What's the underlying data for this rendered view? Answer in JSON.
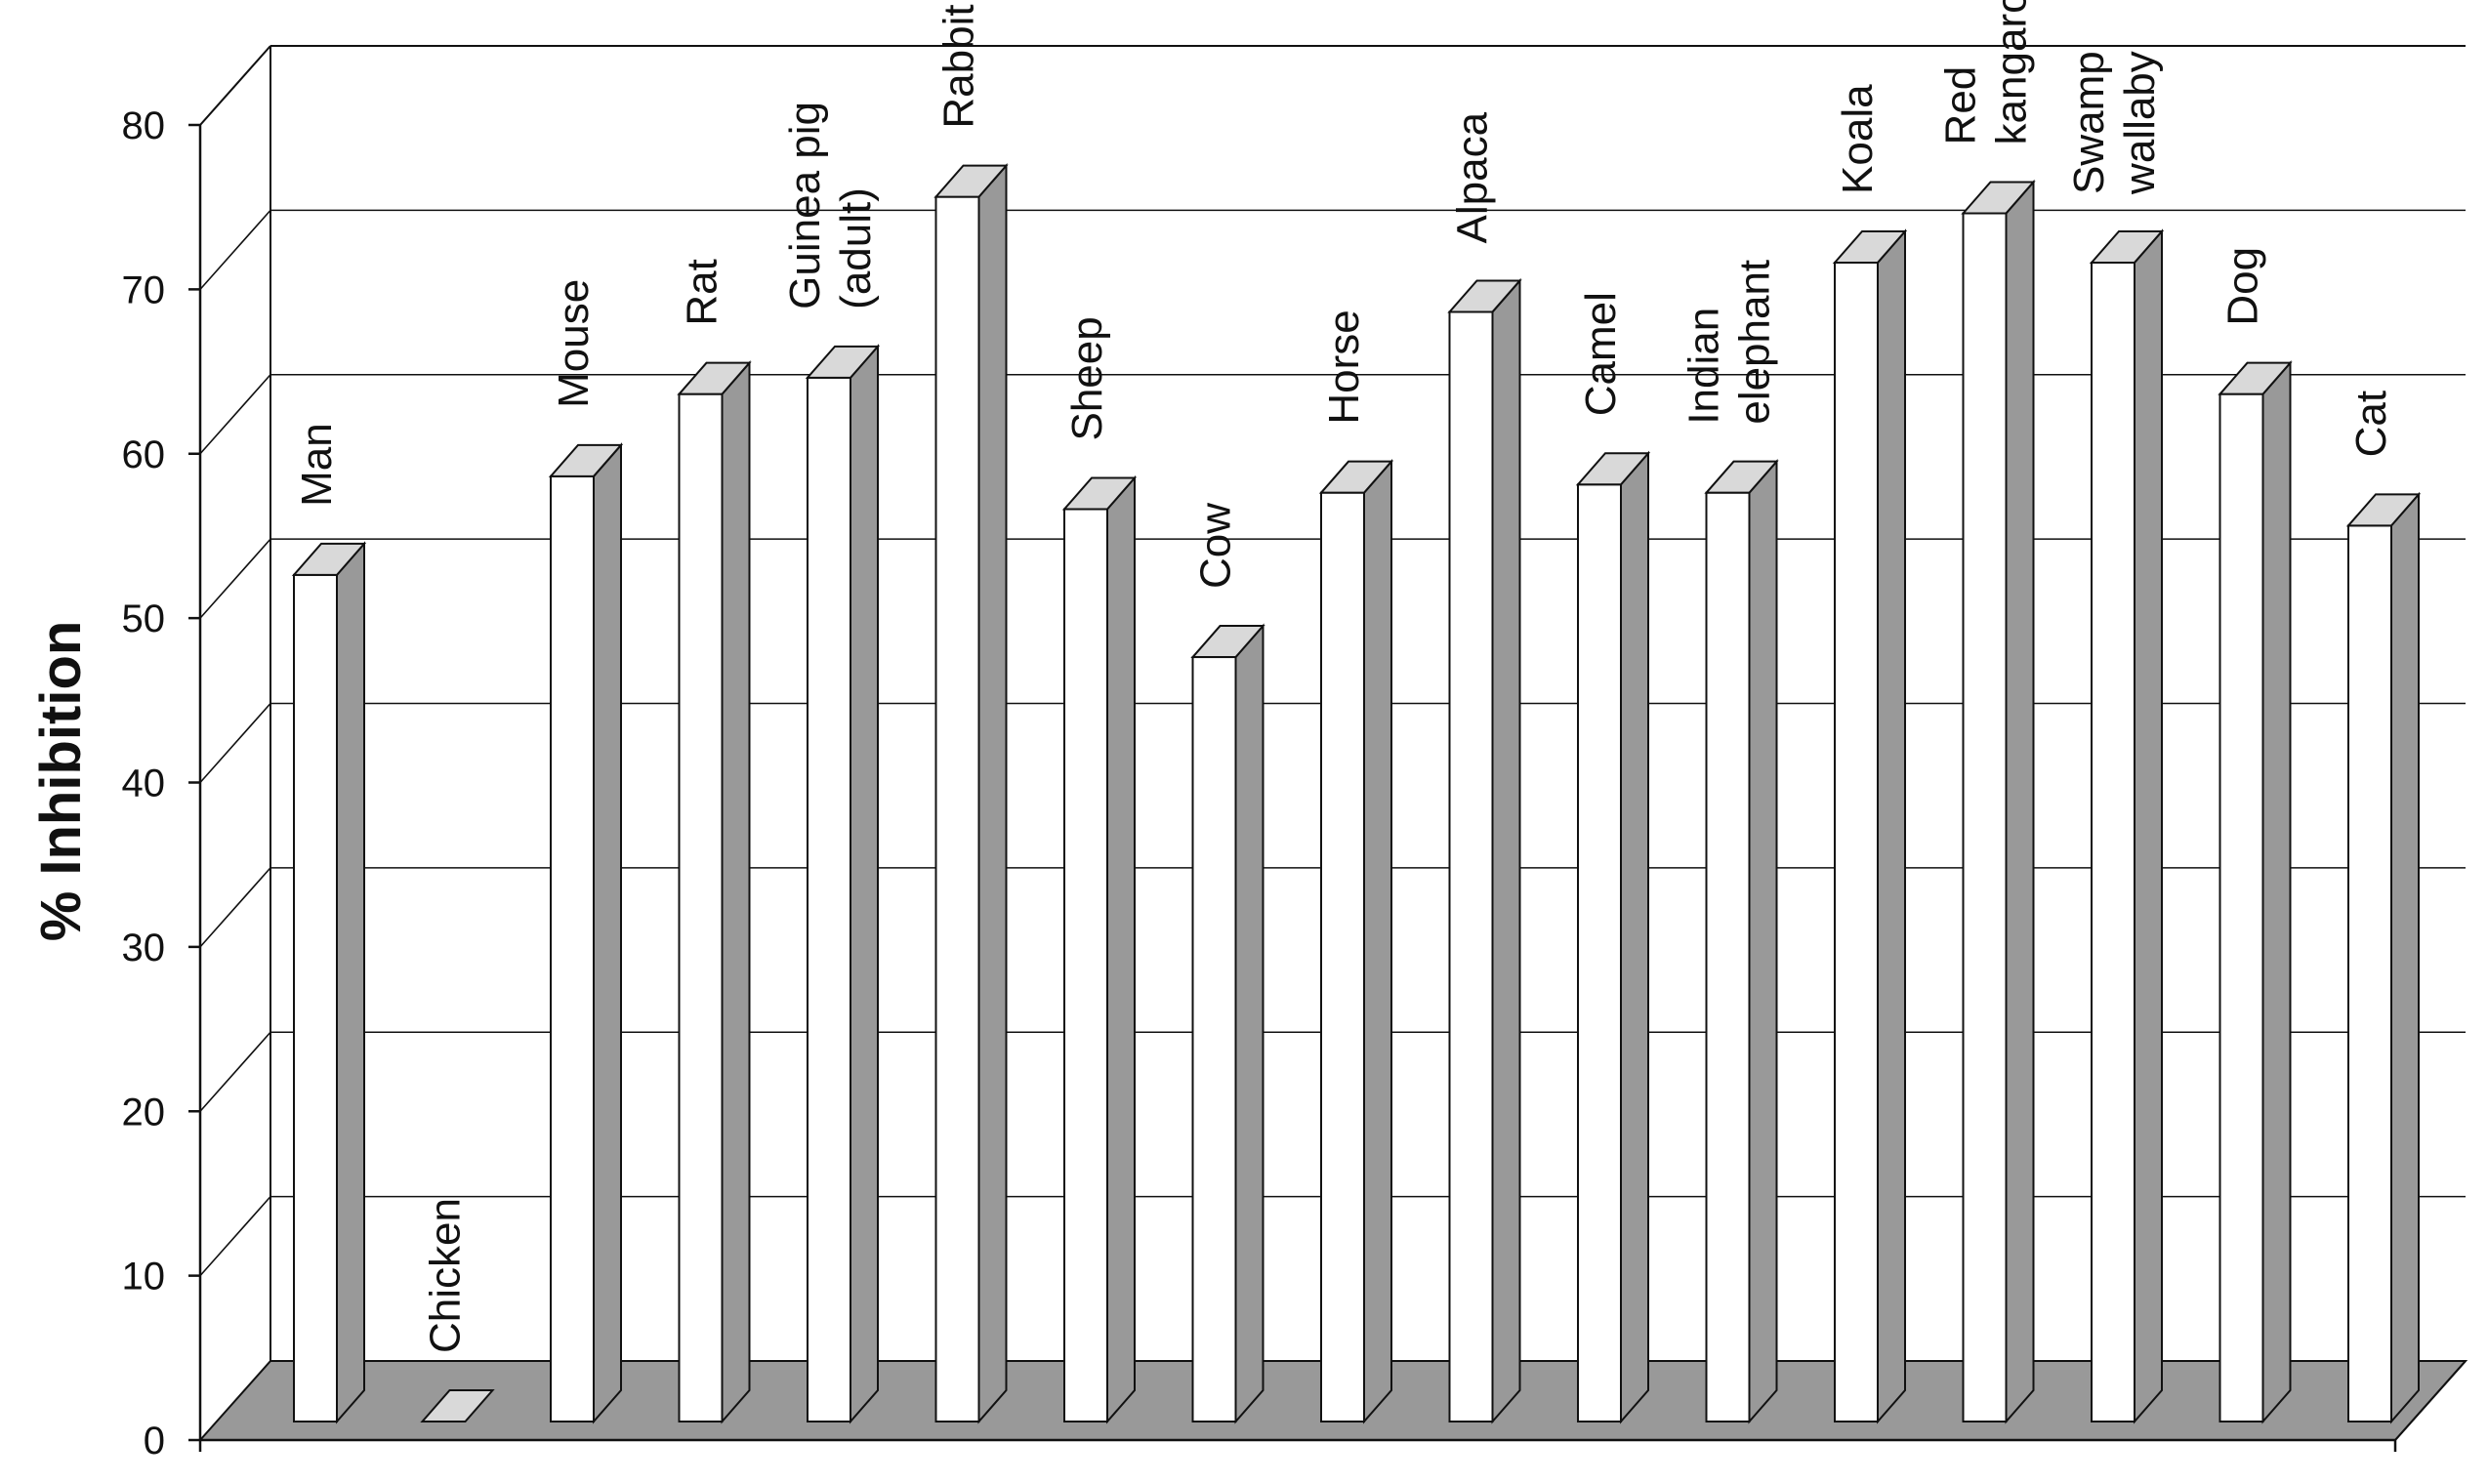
{
  "chart_data": {
    "type": "bar",
    "title": "",
    "xlabel": "",
    "ylabel": "% Inhibition",
    "ylim": [
      0,
      80
    ],
    "yticks": [
      "0",
      "10",
      "20",
      "30",
      "40",
      "50",
      "60",
      "70",
      "80"
    ],
    "grid": true,
    "style": "3d",
    "colors": {
      "bar_front": "#ffffff",
      "bar_side": "#999999",
      "bar_top": "#d9d9d9",
      "floor": "#999999",
      "outline": "#111111"
    },
    "categories": [
      [
        "Man"
      ],
      [
        "Chicken"
      ],
      [
        "Mouse"
      ],
      [
        "Rat"
      ],
      [
        "Guinea pig",
        "(adult)"
      ],
      [
        "Rabbit"
      ],
      [
        "Sheep"
      ],
      [
        "Cow"
      ],
      [
        "Horse"
      ],
      [
        "Alpaca"
      ],
      [
        "Camel"
      ],
      [
        "Indian",
        "elephant"
      ],
      [
        "Koala"
      ],
      [
        "Red",
        "kangaroo"
      ],
      [
        "Swamp",
        "wallaby"
      ],
      [
        "Dog"
      ],
      [
        "Cat"
      ]
    ],
    "values": [
      51.5,
      0,
      57.5,
      62.5,
      63.5,
      74.5,
      55.5,
      46.5,
      56.5,
      67.5,
      57,
      56.5,
      70.5,
      73.5,
      70.5,
      62.5,
      54.5
    ]
  }
}
